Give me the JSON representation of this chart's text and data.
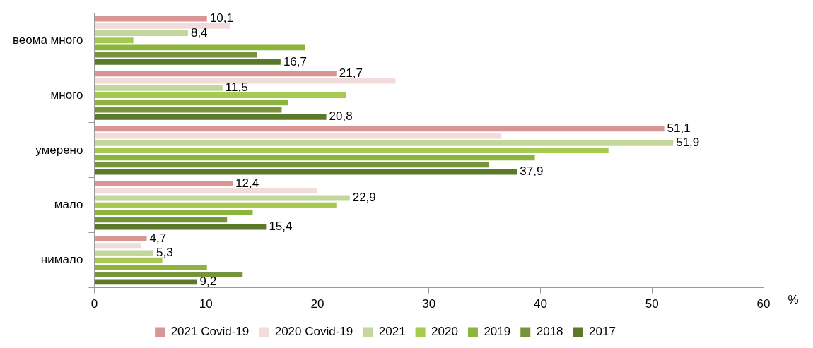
{
  "chart_data": {
    "type": "bar",
    "orientation": "horizontal",
    "categories": [
      "веома много",
      "много",
      "умерено",
      "мало",
      "нимало"
    ],
    "xlabel": "%",
    "xlim": [
      0,
      60
    ],
    "xticks": [
      0,
      10,
      20,
      30,
      40,
      50,
      60
    ],
    "grid": false,
    "legend": "bottom",
    "series": [
      {
        "name": "2021 Covid-19",
        "color": "#d99594",
        "values": [
          10.1,
          21.7,
          51.1,
          12.4,
          4.7
        ],
        "value_labels": [
          "10,1",
          "21,7",
          "51,1",
          "12,4",
          "4,7"
        ]
      },
      {
        "name": "2020 Covid-19",
        "color": "#f2dcdb",
        "values": [
          12.2,
          27.0,
          36.5,
          20.0,
          4.2
        ]
      },
      {
        "name": "2021",
        "color": "#c3d69b",
        "values": [
          8.4,
          11.5,
          51.9,
          22.9,
          5.3
        ],
        "value_labels": [
          "8,4",
          "11,5",
          "51,9",
          "22,9",
          "5,3"
        ]
      },
      {
        "name": "2020",
        "color": "#a6c94f",
        "values": [
          3.5,
          22.6,
          46.1,
          21.7,
          6.1
        ]
      },
      {
        "name": "2019",
        "color": "#8db43c",
        "values": [
          18.9,
          17.4,
          39.5,
          14.2,
          10.1
        ]
      },
      {
        "name": "2018",
        "color": "#77933c",
        "values": [
          14.6,
          16.8,
          35.4,
          11.9,
          13.3
        ]
      },
      {
        "name": "2017",
        "color": "#5a7a2a",
        "values": [
          16.7,
          20.8,
          37.9,
          15.4,
          9.2
        ],
        "value_labels": [
          "16,7",
          "20,8",
          "37,9",
          "15,4",
          "9,2"
        ]
      }
    ]
  }
}
